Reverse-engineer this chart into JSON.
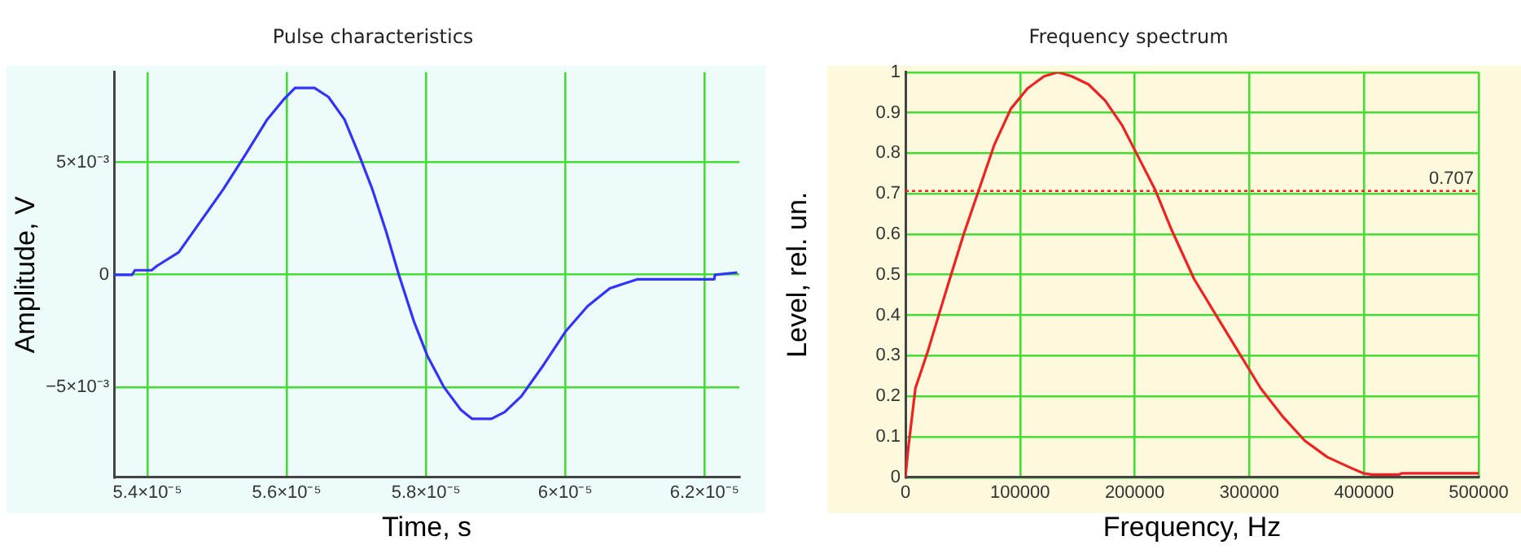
{
  "chart_data": [
    {
      "type": "line",
      "title": "Pulse characteristics",
      "xlabel": "Time, s",
      "ylabel": "Amplitude, V",
      "series": [
        {
          "color": "#3333ff",
          "x": [
            5.352e-05,
            5.378e-05,
            5.382e-05,
            5.406e-05,
            5.414e-05,
            5.445e-05,
            5.477e-05,
            5.509e-05,
            5.54e-05,
            5.572e-05,
            5.596e-05,
            5.612e-05,
            5.64e-05,
            5.66e-05,
            5.683e-05,
            5.703e-05,
            5.723e-05,
            5.743e-05,
            5.761e-05,
            5.783e-05,
            5.802e-05,
            5.826e-05,
            5.85e-05,
            5.866e-05,
            5.894e-05,
            5.913e-05,
            5.937e-05,
            5.969e-05,
            6.001e-05,
            6.032e-05,
            6.064e-05,
            6.104e-05,
            6.214e-05,
            6.215e-05,
            6.247e-05
          ],
          "values": [
            0,
            0,
            0.0002,
            0.0002,
            0.0004,
            0.001,
            0.0024,
            0.0038,
            0.0053,
            0.0069,
            0.0078,
            0.0083,
            0.0083,
            0.0079,
            0.0069,
            0.0054,
            0.0038,
            0.0019,
            0,
            -0.0021,
            -0.0036,
            -0.005,
            -0.006,
            -0.0064,
            -0.0064,
            -0.0061,
            -0.0054,
            -0.004,
            -0.0025,
            -0.0014,
            -0.0006,
            -0.0002,
            -0.0002,
            0,
            0.0001
          ]
        }
      ],
      "xlim": [
        5.352e-05,
        6.25e-05
      ],
      "xticks": [
        {
          "value": 5.4e-05,
          "label": "5.4×10⁻⁵"
        },
        {
          "value": 5.6e-05,
          "label": "5.6×10⁻⁵"
        },
        {
          "value": 5.8e-05,
          "label": "5.8×10⁻⁵"
        },
        {
          "value": 6e-05,
          "label": "6×10⁻⁵"
        },
        {
          "value": 6.2e-05,
          "label": "6.2×10⁻⁵"
        }
      ],
      "ylim": [
        -0.009,
        0.009
      ],
      "yticks": [
        {
          "value": -0.005,
          "label": "−5×10⁻³"
        },
        0,
        {
          "value": 0.005,
          "label": "5×10⁻³"
        }
      ],
      "grid": true,
      "legend": false,
      "marker": "none",
      "line_style": "solid"
    },
    {
      "type": "line",
      "title": "Frequency spectrum",
      "xlabel": "Frequency, Hz",
      "ylabel": "Level, rel. un.",
      "series": [
        {
          "color": "#ee2222",
          "x": [
            0,
            2400,
            8700,
            19400,
            29000,
            38700,
            50800,
            62900,
            77400,
            92000,
            106500,
            121000,
            133000,
            145000,
            159700,
            174200,
            188800,
            203300,
            217800,
            232300,
            251700,
            271000,
            290400,
            309800,
            329100,
            348500,
            367900,
            387200,
            399300,
            406600,
            430800,
            433200,
            500000
          ],
          "values": [
            0,
            0.07,
            0.22,
            0.31,
            0.4,
            0.49,
            0.6,
            0.7,
            0.82,
            0.91,
            0.96,
            0.99,
            1,
            0.99,
            0.97,
            0.93,
            0.87,
            0.79,
            0.71,
            0.61,
            0.49,
            0.4,
            0.31,
            0.22,
            0.15,
            0.09,
            0.05,
            0.025,
            0.01,
            0.007,
            0.007,
            0.01,
            0.01
          ]
        }
      ],
      "xlim": [
        0,
        500000
      ],
      "xticks": [
        0,
        100000,
        200000,
        300000,
        400000,
        500000
      ],
      "ylim": [
        0,
        1
      ],
      "yticks": [
        0,
        0.1,
        0.2,
        0.3,
        0.4,
        0.5,
        0.6,
        0.7,
        0.8,
        0.9,
        1
      ],
      "ref_lines": [
        {
          "axis": "y",
          "value": 0.707,
          "label": "0.707",
          "color": "#ee2222",
          "line_style": "dotted"
        }
      ],
      "grid": true,
      "legend": false,
      "marker": "none",
      "line_style": "solid"
    }
  ]
}
